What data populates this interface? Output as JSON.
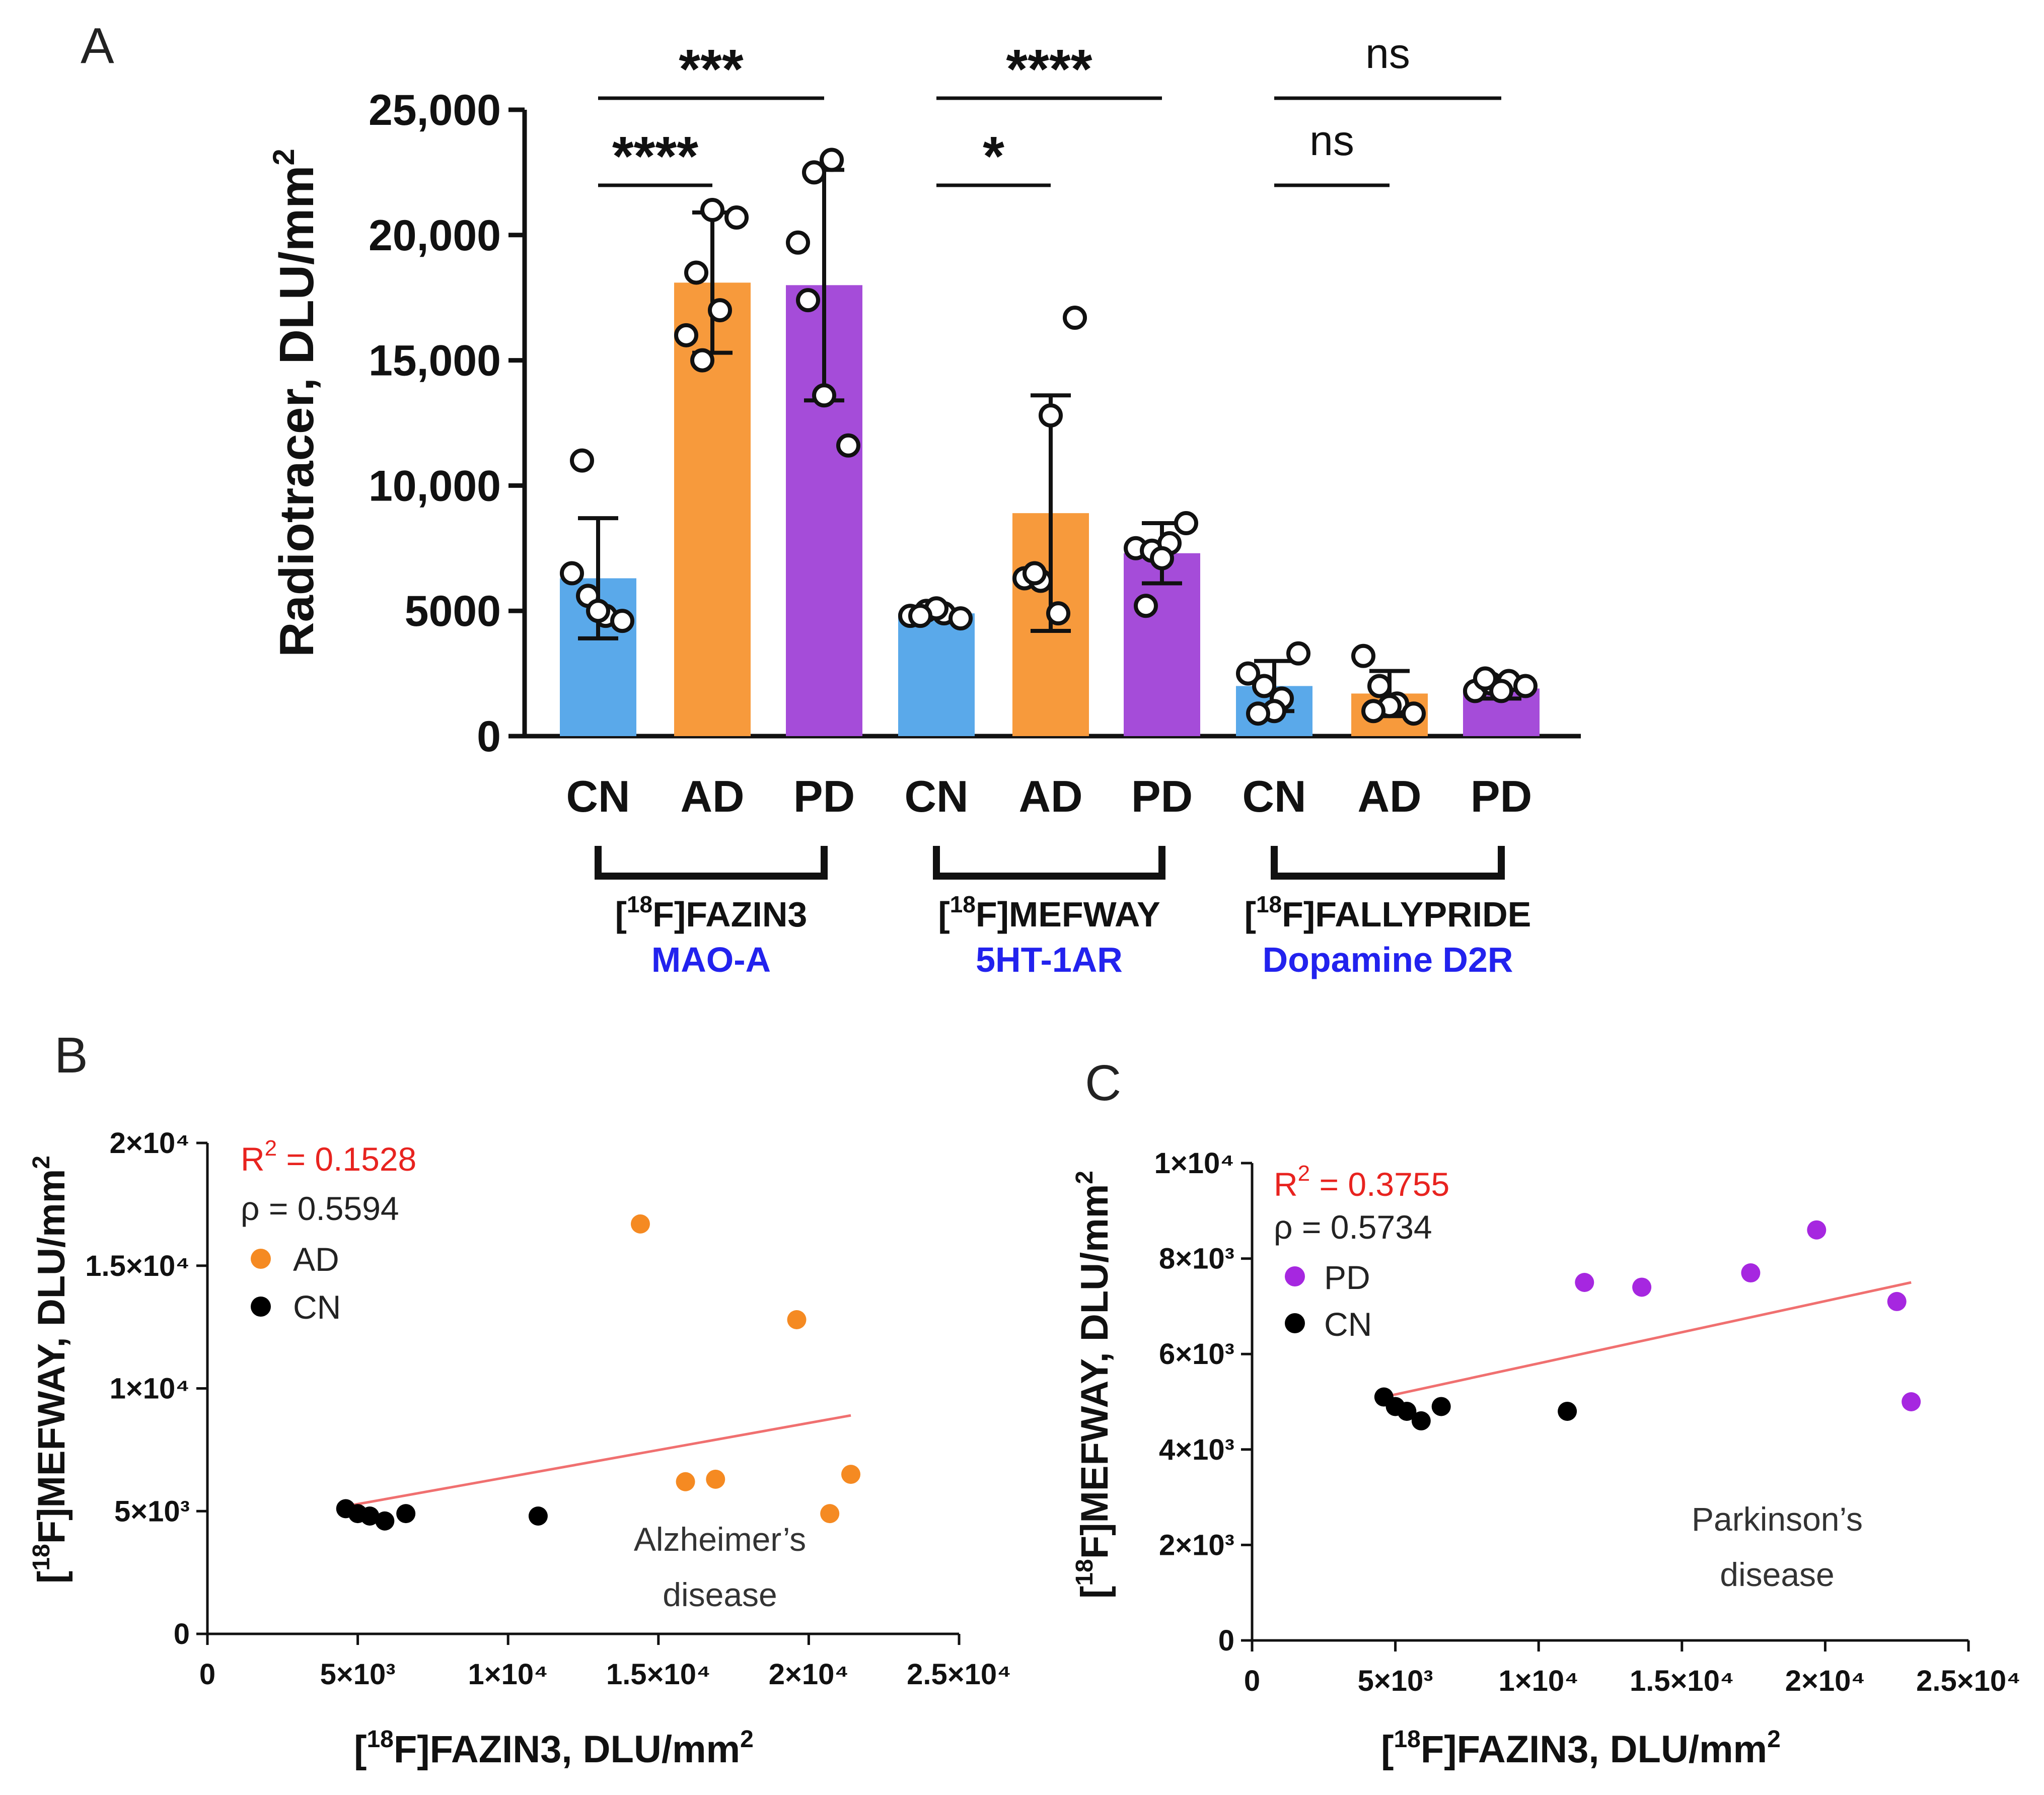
{
  "colors": {
    "CN": "#5aa9ea",
    "AD": "#f79a3c",
    "PD": "#a54cd9",
    "CN_dot": "#000000",
    "AD_dot": "#f58a22",
    "PD_dot": "#a627e0",
    "fit": "#f07070",
    "r2": "#e8231f",
    "target_label": "#2222ee"
  },
  "panels": {
    "A": {
      "letter": "A",
      "ylabel": "Radiotracer, DLU/mm",
      "ylabel_sup": "2",
      "yticks": [
        "25,000",
        "20,000",
        "15,000",
        "10,000",
        "5000",
        "0"
      ],
      "groups": [
        {
          "tracer_pre": "[",
          "tracer_sup": "18",
          "tracer_post": "F]FAZIN3",
          "target": "MAO-A"
        },
        {
          "tracer_pre": "[",
          "tracer_sup": "18",
          "tracer_post": "F]MEFWAY",
          "target": "5HT-1AR"
        },
        {
          "tracer_pre": "[",
          "tracer_sup": "18",
          "tracer_post": "F]FALLYPRIDE",
          "target": "Dopamine D2R"
        }
      ],
      "significance": [
        {
          "label": "***"
        },
        {
          "label": "****"
        },
        {
          "label": "****"
        },
        {
          "label": "*"
        },
        {
          "label": "ns"
        },
        {
          "label": "ns"
        }
      ]
    },
    "B": {
      "letter": "B",
      "xlabel_pre": "[",
      "xlabel_sup": "18",
      "xlabel_post": "F]FAZIN3, DLU/mm",
      "xlabel_sup2": "2",
      "ylabel_pre": "[",
      "ylabel_sup": "18",
      "ylabel_post": "F]MEFWAY, DLU/mm",
      "ylabel_sup2": "2",
      "r2_text": "R",
      "r2_sup": "2",
      "r2_value": " = 0.1528",
      "rho": "ρ = 0.5594",
      "legend": [
        "AD",
        "CN"
      ],
      "disease_line1": "Alzheimer’s",
      "disease_line2": "disease",
      "xticks": [
        "0",
        "5×10³",
        "1×10⁴",
        "1.5×10⁴",
        "2×10⁴",
        "2.5×10⁴"
      ],
      "yticks": [
        "0",
        "5×10³",
        "1×10⁴",
        "1.5×10⁴",
        "2×10⁴"
      ]
    },
    "C": {
      "letter": "C",
      "xlabel_pre": "[",
      "xlabel_sup": "18",
      "xlabel_post": "F]FAZIN3, DLU/mm",
      "xlabel_sup2": "2",
      "ylabel_pre": "[",
      "ylabel_sup": "18",
      "ylabel_post": "F]MEFWAY, DLU/mm",
      "ylabel_sup2": "2",
      "r2_text": "R",
      "r2_sup": "2",
      "r2_value": " = 0.3755",
      "rho": "ρ = 0.5734",
      "legend": [
        "PD",
        "CN"
      ],
      "disease_line1": "Parkinson’s",
      "disease_line2": "disease",
      "xticks": [
        "0",
        "5×10³",
        "1×10⁴",
        "1.5×10⁴",
        "2×10⁴",
        "2.5×10⁴"
      ],
      "yticks": [
        "0",
        "2×10³",
        "4×10³",
        "6×10³",
        "8×10³",
        "1×10⁴"
      ]
    }
  },
  "chart_data": [
    {
      "type": "bar",
      "panel": "A",
      "ylabel": "Radiotracer, DLU/mm2",
      "ylim": [
        0,
        25000
      ],
      "groups": [
        "[18F]FAZIN3",
        "[18F]MEFWAY",
        "[18F]FALLYPRIDE"
      ],
      "group_targets": [
        "MAO-A",
        "5HT-1AR",
        "Dopamine D2R"
      ],
      "bars": [
        {
          "group": 0,
          "category": "CN",
          "mean": 6300,
          "sd": 2400,
          "points": [
            6500,
            5600,
            4800,
            4600,
            5000,
            11000
          ]
        },
        {
          "group": 0,
          "category": "AD",
          "mean": 18100,
          "sd": 2800,
          "points": [
            16000,
            15000,
            17000,
            20700,
            21000,
            18500
          ]
        },
        {
          "group": 0,
          "category": "PD",
          "mean": 18000,
          "sd": 4600,
          "points": [
            19700,
            22500,
            23000,
            11600,
            13600,
            17400
          ]
        },
        {
          "group": 1,
          "category": "CN",
          "mean": 4900,
          "sd": 150,
          "points": [
            4800,
            5000,
            4900,
            4700,
            5100,
            4800
          ]
        },
        {
          "group": 1,
          "category": "AD",
          "mean": 8900,
          "sd": 4700,
          "points": [
            6300,
            6200,
            4900,
            16700,
            12800,
            6500
          ]
        },
        {
          "group": 1,
          "category": "PD",
          "mean": 7300,
          "sd": 1200,
          "points": [
            7500,
            7400,
            7700,
            8500,
            7100,
            5200
          ]
        },
        {
          "group": 2,
          "category": "CN",
          "mean": 2000,
          "sd": 1000,
          "points": [
            2500,
            2000,
            1500,
            3300,
            1000,
            900
          ]
        },
        {
          "group": 2,
          "category": "AD",
          "mean": 1700,
          "sd": 900,
          "points": [
            3200,
            2000,
            1300,
            900,
            1200,
            1000
          ]
        },
        {
          "group": 2,
          "category": "PD",
          "mean": 1900,
          "sd": 400,
          "points": [
            1800,
            2100,
            2200,
            2000,
            1800,
            2300
          ]
        }
      ],
      "comparisons": [
        {
          "from_bar": 0,
          "to_bar": 2,
          "label": "***",
          "y": 25800
        },
        {
          "from_bar": 0,
          "to_bar": 1,
          "label": "****",
          "y": 22000
        },
        {
          "from_bar": 3,
          "to_bar": 5,
          "label": "****",
          "y": 25800
        },
        {
          "from_bar": 3,
          "to_bar": 4,
          "label": "*",
          "y": 22000
        },
        {
          "from_bar": 6,
          "to_bar": 8,
          "label": "ns",
          "y": 25800
        },
        {
          "from_bar": 6,
          "to_bar": 7,
          "label": "ns",
          "y": 22000
        }
      ]
    },
    {
      "type": "scatter",
      "panel": "B",
      "xlabel": "[18F]FAZIN3, DLU/mm2",
      "ylabel": "[18F]MEFWAY, DLU/mm2",
      "xlim": [
        0,
        25000
      ],
      "ylim": [
        0,
        20000
      ],
      "R2": 0.1528,
      "rho": 0.5594,
      "series": [
        {
          "name": "AD",
          "points": [
            [
              14400,
              16700
            ],
            [
              19600,
              12800
            ],
            [
              15900,
              6200
            ],
            [
              16900,
              6300
            ],
            [
              21400,
              6500
            ],
            [
              20700,
              4900
            ]
          ]
        },
        {
          "name": "CN",
          "points": [
            [
              4600,
              5100
            ],
            [
              5000,
              4900
            ],
            [
              5400,
              4800
            ],
            [
              5900,
              4600
            ],
            [
              6600,
              4900
            ],
            [
              11000,
              4800
            ]
          ]
        }
      ],
      "fit_line": [
        [
          4600,
          5200
        ],
        [
          21400,
          8900
        ]
      ]
    },
    {
      "type": "scatter",
      "panel": "C",
      "xlabel": "[18F]FAZIN3, DLU/mm2",
      "ylabel": "[18F]MEFWAY, DLU/mm2",
      "xlim": [
        0,
        25000
      ],
      "ylim": [
        0,
        10000
      ],
      "R2": 0.3755,
      "rho": 0.5734,
      "series": [
        {
          "name": "PD",
          "points": [
            [
              11600,
              7500
            ],
            [
              13600,
              7400
            ],
            [
              17400,
              7700
            ],
            [
              19700,
              8600
            ],
            [
              22500,
              7100
            ],
            [
              23000,
              5000
            ]
          ]
        },
        {
          "name": "CN",
          "points": [
            [
              4600,
              5100
            ],
            [
              5000,
              4900
            ],
            [
              5400,
              4800
            ],
            [
              5900,
              4600
            ],
            [
              6600,
              4900
            ],
            [
              11000,
              4800
            ]
          ]
        }
      ],
      "fit_line": [
        [
          4600,
          5100
        ],
        [
          23000,
          7500
        ]
      ]
    }
  ]
}
